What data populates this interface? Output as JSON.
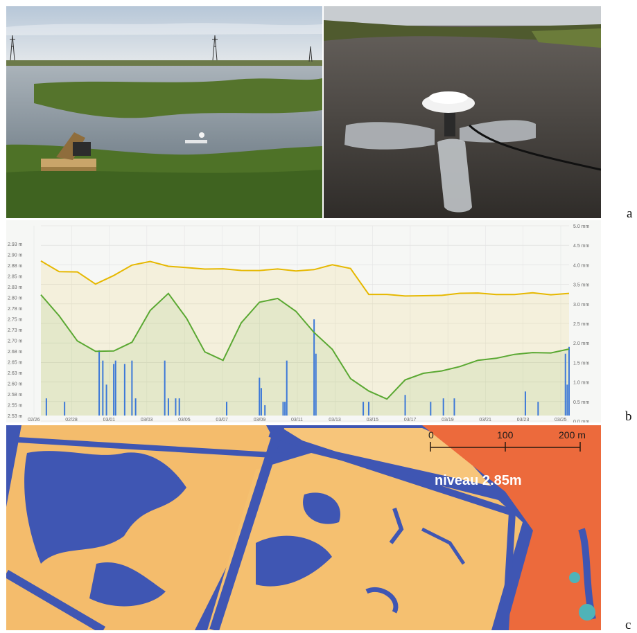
{
  "figure": {
    "panel_labels": {
      "a": "a",
      "b": "b",
      "c": "c"
    }
  },
  "chart_data": {
    "type": "line",
    "x_tick_labels": [
      "02/26",
      "02/28",
      "03/01",
      "03/03",
      "03/05",
      "03/07",
      "03/09",
      "03/11",
      "03/13",
      "03/15",
      "03/17",
      "03/19",
      "03/21",
      "03/23",
      "03/25"
    ],
    "y_left_tick_labels": [
      "2.93 m",
      "2.90 m",
      "2.88 m",
      "2.85 m",
      "2.83 m",
      "2.80 m",
      "2.78 m",
      "2.75 m",
      "2.73 m",
      "2.70 m",
      "2.68 m",
      "2.65 m",
      "2.63 m",
      "2.60 m",
      "2.58 m",
      "2.55 m",
      "2.53 m"
    ],
    "y_right_tick_labels": [
      "5.0 mm",
      "4.5 mm",
      "4.0 mm",
      "3.5 mm",
      "3.0 mm",
      "2.5 mm",
      "2.0 mm",
      "1.5 mm",
      "1.0 mm",
      "0.5 mm",
      "0.0 mm"
    ],
    "ylim_left": [
      2.52,
      2.93
    ],
    "ylim_right": [
      0,
      5
    ],
    "xlim": [
      0,
      29
    ],
    "grid": true,
    "series": [
      {
        "color": "#e6b800",
        "axis": "right",
        "x": [
          0,
          1,
          2,
          3,
          4,
          5,
          6,
          7,
          8,
          9,
          10,
          11,
          12,
          13,
          14,
          15,
          16,
          17,
          18,
          19,
          20,
          21,
          22,
          23,
          24,
          25,
          26,
          27,
          28,
          29
        ],
        "values": [
          4.5,
          4.2,
          4.2,
          3.85,
          4.1,
          4.4,
          4.5,
          4.35,
          4.3,
          4.25,
          4.25,
          4.2,
          4.2,
          4.25,
          4.2,
          4.25,
          4.4,
          4.3,
          3.55,
          3.55,
          3.5,
          3.5,
          3.5,
          3.55,
          3.55,
          3.5,
          3.5,
          3.55,
          3.5,
          3.55
        ]
      },
      {
        "color": "#5aa832",
        "axis": "left",
        "x": [
          0,
          1,
          2,
          3,
          4,
          5,
          6,
          7,
          8,
          9,
          10,
          11,
          12,
          13,
          14,
          15,
          16,
          17,
          18,
          19,
          20,
          21,
          22,
          23,
          24,
          25,
          26,
          27,
          28,
          29
        ],
        "values": [
          2.81,
          2.76,
          2.7,
          2.675,
          2.675,
          2.695,
          2.77,
          2.81,
          2.75,
          2.67,
          2.65,
          2.74,
          2.79,
          2.8,
          2.77,
          2.72,
          2.68,
          2.61,
          2.58,
          2.56,
          2.605,
          2.62,
          2.625,
          2.635,
          2.65,
          2.655,
          2.665,
          2.67,
          2.67,
          2.68
        ]
      },
      {
        "color": "#3c78d8",
        "axis": "right",
        "type": "bar",
        "x": [
          0.3,
          1.3,
          3.2,
          3.4,
          3.6,
          4.0,
          4.1,
          4.6,
          5.0,
          5.2,
          6.8,
          7.0,
          7.4,
          7.6,
          10.2,
          12.0,
          12.1,
          12.3,
          13.3,
          13.4,
          13.5,
          15.0,
          15.1,
          17.7,
          18.0,
          20.0,
          21.4,
          22.1,
          22.7,
          26.6,
          27.3,
          28.8,
          28.9,
          29.0
        ],
        "values": [
          0.5,
          0.4,
          1.9,
          1.6,
          0.9,
          1.5,
          1.6,
          1.5,
          1.6,
          0.5,
          1.6,
          0.5,
          0.5,
          0.5,
          0.4,
          1.1,
          0.8,
          0.3,
          0.4,
          0.4,
          1.6,
          2.8,
          1.8,
          0.4,
          0.4,
          0.6,
          0.4,
          0.5,
          0.5,
          0.7,
          0.4,
          1.8,
          0.9,
          2.0
        ]
      }
    ]
  },
  "map": {
    "scale_ticks": [
      "0",
      "100",
      "200 m"
    ],
    "level_label": "niveau 2.85m",
    "colors": {
      "water": "#3f56b3",
      "dry": "#f5c070",
      "high": "#ec6a3c",
      "vegetation": "#4fb3b8"
    }
  },
  "photos": {
    "left": {
      "sky": "#c8d3de",
      "water": "#8f9aa4",
      "grass": "#577a2e"
    },
    "right": {
      "water": "#3e3a36",
      "reeds": "#5c6a36",
      "buoy": "#b9bcc0"
    }
  }
}
